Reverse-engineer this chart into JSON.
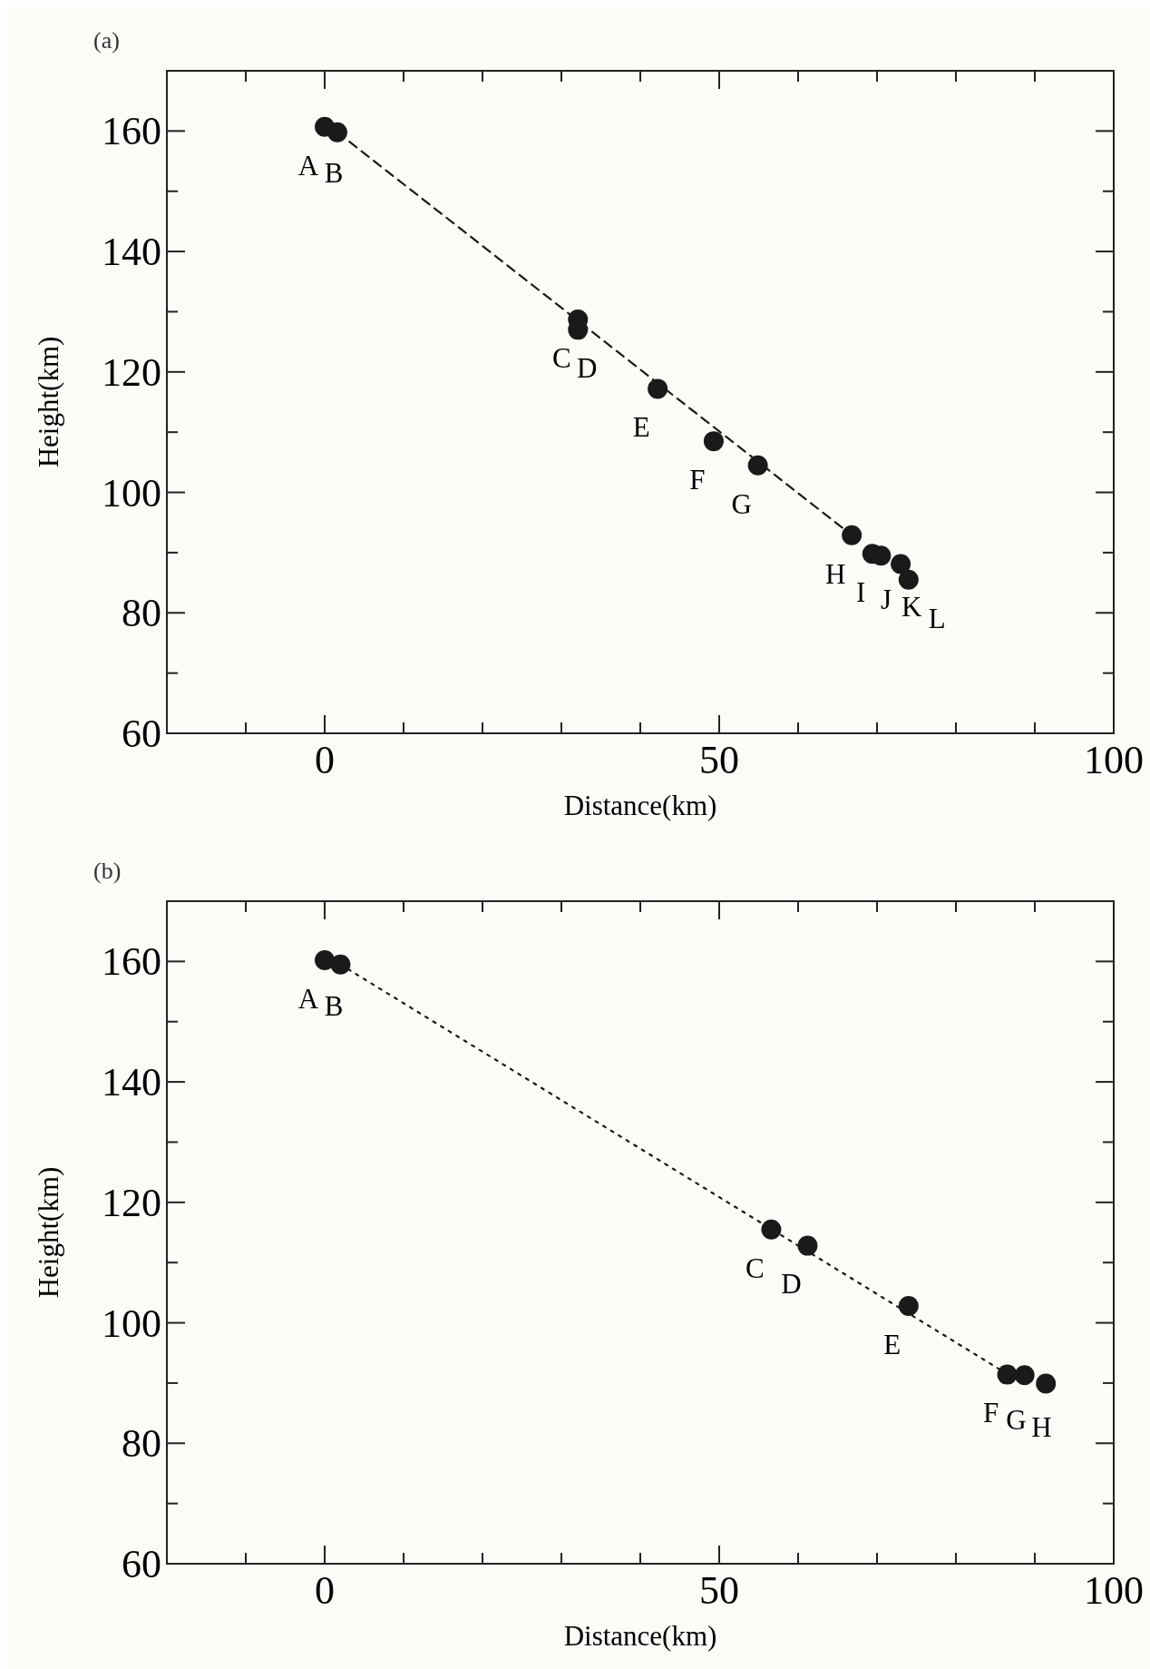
{
  "chart_data": [
    {
      "type": "scatter",
      "title": "(a)",
      "xlabel": "Distance(km)",
      "ylabel": "Height(km)",
      "xlim": [
        -20,
        100
      ],
      "ylim": [
        60,
        170
      ],
      "grid": false,
      "xticks": [
        {
          "value": -10,
          "label": null
        },
        0,
        {
          "value": 10,
          "label": null
        },
        {
          "value": 20,
          "label": null
        },
        {
          "value": 30,
          "label": null
        },
        {
          "value": 40,
          "label": null
        },
        50,
        {
          "value": 60,
          "label": null
        },
        {
          "value": 70,
          "label": null
        },
        {
          "value": 80,
          "label": null
        },
        {
          "value": 90,
          "label": null
        },
        100
      ],
      "yticks": [
        60,
        {
          "value": 70,
          "label": null
        },
        80,
        {
          "value": 90,
          "label": null
        },
        100,
        {
          "value": 110,
          "label": null
        },
        120,
        {
          "value": 130,
          "label": null
        },
        140,
        {
          "value": 150,
          "label": null
        },
        160
      ],
      "series": [
        {
          "marker": "circle",
          "color": "#1a1a1a",
          "x": [
            0,
            1.6,
            32.1,
            32.1,
            42.2,
            49.3,
            54.9,
            66.8,
            69.4,
            70.5,
            73.0,
            74.0
          ],
          "values": [
            160.7,
            159.8,
            128.7,
            127.0,
            117.2,
            108.5,
            104.5,
            92.9,
            89.8,
            89.5,
            88.1,
            85.5
          ]
        },
        {
          "type": "line",
          "marker": "none",
          "line_style": "dashed",
          "color": "#1a1a1a",
          "x": [
            1.6,
            66.8
          ],
          "values": [
            159.8,
            92.9
          ]
        }
      ],
      "annotations": [
        {
          "text": "A",
          "x": 0,
          "y": 160.7
        },
        {
          "text": "B",
          "x": 1.6,
          "y": 159.8
        },
        {
          "text": "C",
          "x": 32.1,
          "y": 128.7
        },
        {
          "text": "D",
          "x": 32.1,
          "y": 127.0
        },
        {
          "text": "E",
          "x": 42.2,
          "y": 117.2
        },
        {
          "text": "F",
          "x": 49.3,
          "y": 108.5
        },
        {
          "text": "G",
          "x": 54.9,
          "y": 104.5
        },
        {
          "text": "H",
          "x": 66.8,
          "y": 92.9
        },
        {
          "text": "I",
          "x": 69.4,
          "y": 89.8
        },
        {
          "text": "J",
          "x": 70.5,
          "y": 89.5
        },
        {
          "text": "K",
          "x": 73.0,
          "y": 88.1
        },
        {
          "text": "L",
          "x": 74.0,
          "y": 85.5
        }
      ]
    },
    {
      "type": "scatter",
      "title": "(b)",
      "xlabel": "Distance(km)",
      "ylabel": "Height(km)",
      "xlim": [
        -20,
        100
      ],
      "ylim": [
        60,
        170
      ],
      "grid": false,
      "xticks": [
        {
          "value": -10,
          "label": null
        },
        0,
        {
          "value": 10,
          "label": null
        },
        {
          "value": 20,
          "label": null
        },
        {
          "value": 30,
          "label": null
        },
        {
          "value": 40,
          "label": null
        },
        50,
        {
          "value": 60,
          "label": null
        },
        {
          "value": 70,
          "label": null
        },
        {
          "value": 80,
          "label": null
        },
        {
          "value": 90,
          "label": null
        },
        100
      ],
      "yticks": [
        60,
        {
          "value": 70,
          "label": null
        },
        80,
        {
          "value": 90,
          "label": null
        },
        100,
        {
          "value": 110,
          "label": null
        },
        120,
        {
          "value": 130,
          "label": null
        },
        140,
        {
          "value": 150,
          "label": null
        },
        160
      ],
      "series": [
        {
          "marker": "circle",
          "color": "#1a1a1a",
          "x": [
            0,
            2.0,
            56.6,
            61.2,
            74.0,
            86.5,
            88.7,
            91.4
          ],
          "values": [
            160.2,
            159.5,
            115.5,
            112.8,
            102.8,
            91.4,
            91.3,
            89.9
          ]
        },
        {
          "type": "line",
          "marker": "none",
          "line_style": "dotted",
          "color": "#1a1a1a",
          "x": [
            2.0,
            86.5
          ],
          "values": [
            159.5,
            91.5
          ]
        }
      ],
      "annotations": [
        {
          "text": "A",
          "x": 0,
          "y": 160.2
        },
        {
          "text": "B",
          "x": 2.0,
          "y": 159.5
        },
        {
          "text": "C",
          "x": 56.6,
          "y": 115.5
        },
        {
          "text": "D",
          "x": 61.2,
          "y": 112.8
        },
        {
          "text": "E",
          "x": 74.0,
          "y": 102.8
        },
        {
          "text": "F",
          "x": 86.5,
          "y": 91.4
        },
        {
          "text": "G",
          "x": 88.7,
          "y": 91.3
        },
        {
          "text": "H",
          "x": 91.4,
          "y": 89.9
        }
      ]
    }
  ]
}
